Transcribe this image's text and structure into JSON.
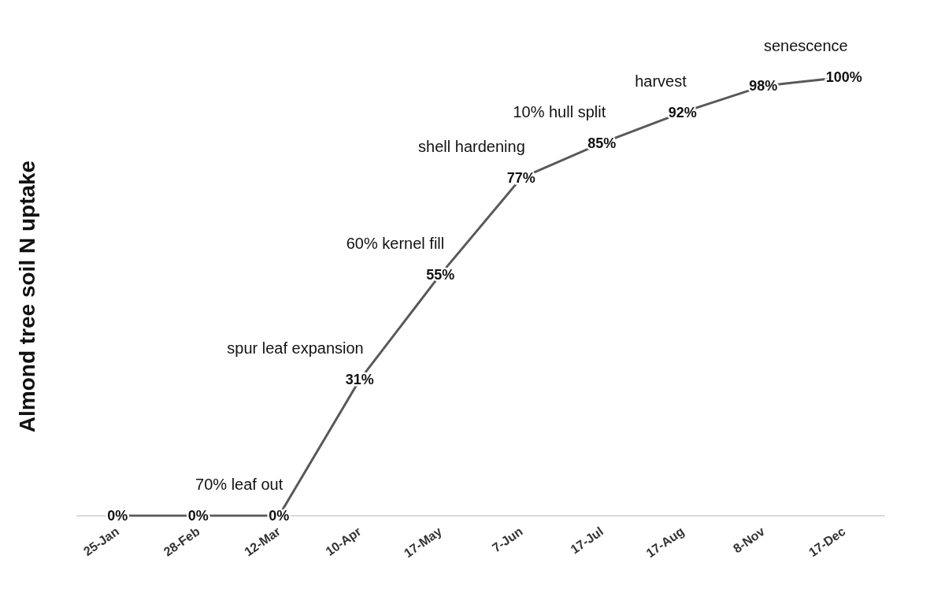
{
  "chart_data": {
    "type": "line",
    "ylabel": "Almond tree soil N uptake",
    "categories": [
      "25-Jan",
      "28-Feb",
      "12-Mar",
      "10-Apr",
      "17-May",
      "7-Jun",
      "17-Jul",
      "17-Aug",
      "8-Nov",
      "17-Dec"
    ],
    "series": [
      {
        "color": "#595959",
        "values": [
          0,
          0,
          0,
          31,
          55,
          77,
          85,
          92,
          98,
          100
        ],
        "value_labels": [
          "0%",
          "0%",
          "0%",
          "31%",
          "55%",
          "77%",
          "85%",
          "92%",
          "98%",
          "100%"
        ]
      }
    ],
    "annotations": [
      {
        "text": "70% leaf out",
        "x": "12-Mar",
        "y": 0
      },
      {
        "text": "spur leaf expansion",
        "x": "10-Apr",
        "y": 31
      },
      {
        "text": "60% kernel fill",
        "x": "17-May",
        "y": 55
      },
      {
        "text": "shell hardening",
        "x": "7-Jun",
        "y": 77
      },
      {
        "text": "10% hull split",
        "x": "17-Jul",
        "y": 85
      },
      {
        "text": "harvest",
        "x": "17-Aug",
        "y": 92
      },
      {
        "text": "senescence",
        "x": "17-Dec",
        "y": 100
      }
    ],
    "grid": false,
    "marker": "none",
    "line_style": "solid"
  }
}
